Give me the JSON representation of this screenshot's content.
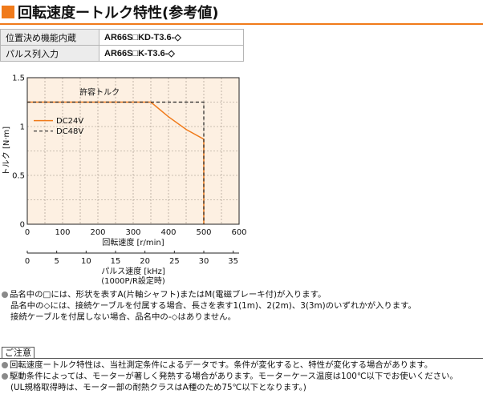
{
  "title": "回転速度ートルク特性(参考値)",
  "spec_table": [
    {
      "label": "位置決め機能内蔵",
      "model": "AR66S□KD-T3.6-◇"
    },
    {
      "label": "パルス列入力",
      "model": "AR66S□K-T3.6-◇"
    }
  ],
  "chart_data": {
    "type": "line",
    "ylabel": "トルク [N·m]",
    "xlabel": "回転速度 [r/min]",
    "x2label_line1": "パルス速度 [kHz]",
    "x2label_line2": "(1000P/R設定時)",
    "xlim": [
      0,
      600
    ],
    "ylim": [
      0,
      1.5
    ],
    "x_ticks": [
      "0",
      "100",
      "200",
      "300",
      "400",
      "500",
      "600"
    ],
    "x_tick_values": [
      0,
      100,
      200,
      300,
      400,
      500,
      600
    ],
    "y_ticks": [
      "0",
      "0.5",
      "1",
      "1.5"
    ],
    "y_tick_values": [
      0,
      0.5,
      1,
      1.5
    ],
    "x2_ticks": [
      "0",
      "5",
      "10",
      "15",
      "20",
      "25",
      "30",
      "35"
    ],
    "x2_tick_values": [
      0,
      5,
      10,
      15,
      20,
      25,
      30,
      35
    ],
    "x2_scale_rpm_per_khz": 16.6667,
    "grid": true,
    "annotation": "許容トルク",
    "legend_position": "upper-left",
    "series": [
      {
        "name": "DC24V",
        "style": "solid",
        "color": "#f07a1a",
        "x": [
          0,
          350,
          400,
          450,
          500,
          500
        ],
        "y": [
          1.25,
          1.25,
          1.1,
          0.97,
          0.87,
          0
        ]
      },
      {
        "name": "DC48V",
        "style": "dashed",
        "color": "#222222",
        "x": [
          0,
          500,
          500
        ],
        "y": [
          1.25,
          1.25,
          0
        ]
      }
    ]
  },
  "notes": [
    {
      "bullet": true,
      "text": "品名中の□には、形状を表すA(片軸シャフト)またはM(電磁ブレーキ付)が入ります。"
    },
    {
      "bullet": false,
      "text": "品名中の◇には、接続ケーブルを付属する場合、長さを表す1(1m)、2(2m)、3(3m)のいずれかが入ります。"
    },
    {
      "bullet": false,
      "text": "接続ケーブルを付属しない場合、品名中の-◇はありません。"
    }
  ],
  "caution_label": "ご注意",
  "caution": [
    {
      "bullet": true,
      "text": "回転速度ートルク特性は、当社測定条件によるデータです。条件が変化すると、特性が変化する場合があります。"
    },
    {
      "bullet": true,
      "text": "駆動条件によっては、モーターが著しく発熱する場合があります。モーターケース温度は100℃以下でお使いください。"
    },
    {
      "bullet": false,
      "text": "(UL規格取得時は、モーター部の耐熱クラスはA種のため75℃以下となります。)"
    }
  ]
}
